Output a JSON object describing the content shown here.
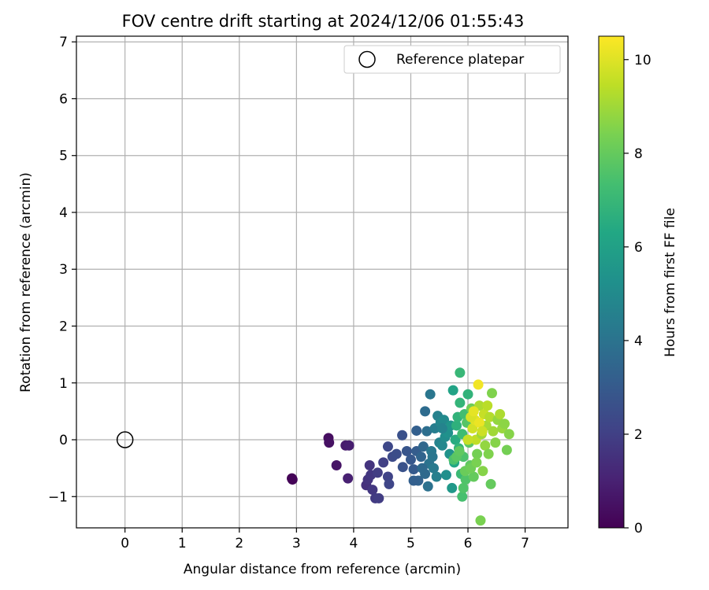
{
  "chart_data": {
    "type": "scatter",
    "title": "FOV centre drift starting at 2024/12/06 01:55:43",
    "xlabel": "Angular distance from reference (arcmin)",
    "ylabel": "Rotation from reference (arcmin)",
    "xlim": [
      -0.85,
      7.75
    ],
    "ylim": [
      -1.55,
      7.1
    ],
    "xticks": [
      0,
      1,
      2,
      3,
      4,
      5,
      6,
      7
    ],
    "yticks": [
      -1,
      0,
      1,
      2,
      3,
      4,
      5,
      6,
      7
    ],
    "grid": true,
    "legend": {
      "position": "top-right",
      "entries": [
        "Reference platepar"
      ]
    },
    "reference_point": {
      "x": 0,
      "y": 0,
      "marker": "open-circle"
    },
    "colorbar": {
      "label": "Hours from first FF file",
      "min": 0,
      "max": 10.5,
      "ticks": [
        0,
        2,
        4,
        6,
        8,
        10
      ],
      "colormap": "viridis"
    },
    "points": [
      {
        "x": 2.92,
        "y": -0.68,
        "c": 0.05
      },
      {
        "x": 2.93,
        "y": -0.7,
        "c": 0.1
      },
      {
        "x": 3.56,
        "y": 0.03,
        "c": 0.4
      },
      {
        "x": 3.57,
        "y": -0.05,
        "c": 0.5
      },
      {
        "x": 3.7,
        "y": -0.45,
        "c": 0.6
      },
      {
        "x": 3.86,
        "y": -0.1,
        "c": 0.8
      },
      {
        "x": 3.92,
        "y": -0.1,
        "c": 0.9
      },
      {
        "x": 3.9,
        "y": -0.68,
        "c": 1.0
      },
      {
        "x": 4.22,
        "y": -0.8,
        "c": 1.5
      },
      {
        "x": 4.25,
        "y": -0.7,
        "c": 1.6
      },
      {
        "x": 4.28,
        "y": -0.45,
        "c": 1.6
      },
      {
        "x": 4.3,
        "y": -0.62,
        "c": 1.7
      },
      {
        "x": 4.33,
        "y": -0.88,
        "c": 1.7
      },
      {
        "x": 4.38,
        "y": -1.03,
        "c": 1.8
      },
      {
        "x": 4.42,
        "y": -0.58,
        "c": 1.9
      },
      {
        "x": 4.44,
        "y": -1.03,
        "c": 1.9
      },
      {
        "x": 4.52,
        "y": -0.4,
        "c": 2.0
      },
      {
        "x": 4.6,
        "y": -0.65,
        "c": 2.1
      },
      {
        "x": 4.62,
        "y": -0.78,
        "c": 2.2
      },
      {
        "x": 4.6,
        "y": -0.12,
        "c": 2.3
      },
      {
        "x": 4.68,
        "y": -0.3,
        "c": 2.4
      },
      {
        "x": 4.75,
        "y": -0.25,
        "c": 2.5
      },
      {
        "x": 4.85,
        "y": 0.08,
        "c": 2.6
      },
      {
        "x": 4.86,
        "y": -0.48,
        "c": 2.7
      },
      {
        "x": 4.93,
        "y": -0.2,
        "c": 2.8
      },
      {
        "x": 5.0,
        "y": -0.35,
        "c": 2.9
      },
      {
        "x": 5.05,
        "y": -0.52,
        "c": 3.0
      },
      {
        "x": 5.1,
        "y": -0.2,
        "c": 3.1
      },
      {
        "x": 5.1,
        "y": 0.16,
        "c": 3.2
      },
      {
        "x": 5.13,
        "y": -0.72,
        "c": 3.3
      },
      {
        "x": 5.18,
        "y": -0.3,
        "c": 3.4
      },
      {
        "x": 5.22,
        "y": -0.12,
        "c": 3.5
      },
      {
        "x": 5.25,
        "y": -0.6,
        "c": 3.6
      },
      {
        "x": 5.25,
        "y": 0.5,
        "c": 3.7
      },
      {
        "x": 5.28,
        "y": 0.15,
        "c": 3.8
      },
      {
        "x": 5.3,
        "y": -0.82,
        "c": 3.9
      },
      {
        "x": 5.32,
        "y": -0.42,
        "c": 4.0
      },
      {
        "x": 5.34,
        "y": 0.8,
        "c": 4.1
      },
      {
        "x": 5.36,
        "y": -0.2,
        "c": 4.2
      },
      {
        "x": 5.4,
        "y": -0.5,
        "c": 4.3
      },
      {
        "x": 5.42,
        "y": 0.2,
        "c": 4.4
      },
      {
        "x": 5.45,
        "y": -0.65,
        "c": 4.5
      },
      {
        "x": 5.47,
        "y": 0.42,
        "c": 4.6
      },
      {
        "x": 5.5,
        "y": -0.05,
        "c": 4.7
      },
      {
        "x": 5.52,
        "y": 0.3,
        "c": 4.8
      },
      {
        "x": 5.55,
        "y": -0.1,
        "c": 4.9
      },
      {
        "x": 5.58,
        "y": 0.35,
        "c": 5.0
      },
      {
        "x": 5.6,
        "y": 0.05,
        "c": 5.1
      },
      {
        "x": 5.62,
        "y": -0.62,
        "c": 5.2
      },
      {
        "x": 5.65,
        "y": 0.12,
        "c": 5.3
      },
      {
        "x": 5.68,
        "y": -0.25,
        "c": 5.4
      },
      {
        "x": 5.7,
        "y": 0.25,
        "c": 5.5
      },
      {
        "x": 5.72,
        "y": -0.85,
        "c": 5.6
      },
      {
        "x": 5.74,
        "y": 0.87,
        "c": 6.1
      },
      {
        "x": 5.76,
        "y": -0.4,
        "c": 6.3
      },
      {
        "x": 5.78,
        "y": 0.0,
        "c": 6.5
      },
      {
        "x": 5.8,
        "y": 0.25,
        "c": 6.7
      },
      {
        "x": 5.82,
        "y": 0.4,
        "c": 6.8
      },
      {
        "x": 5.84,
        "y": -0.15,
        "c": 6.9
      },
      {
        "x": 5.86,
        "y": 1.18,
        "c": 7.0
      },
      {
        "x": 5.86,
        "y": 0.65,
        "c": 6.9
      },
      {
        "x": 5.88,
        "y": -0.6,
        "c": 7.1
      },
      {
        "x": 5.9,
        "y": -1.0,
        "c": 7.4
      },
      {
        "x": 5.9,
        "y": 0.1,
        "c": 7.2
      },
      {
        "x": 5.92,
        "y": -0.3,
        "c": 7.5
      },
      {
        "x": 5.94,
        "y": 0.45,
        "c": 7.3
      },
      {
        "x": 5.96,
        "y": -0.7,
        "c": 7.6
      },
      {
        "x": 5.98,
        "y": 0.3,
        "c": 7.7
      },
      {
        "x": 6.0,
        "y": 0.8,
        "c": 6.8
      },
      {
        "x": 6.02,
        "y": -0.05,
        "c": 7.8
      },
      {
        "x": 6.04,
        "y": -0.45,
        "c": 7.9
      },
      {
        "x": 6.06,
        "y": 0.55,
        "c": 8.2
      },
      {
        "x": 6.08,
        "y": 0.2,
        "c": 9.8
      },
      {
        "x": 6.1,
        "y": -0.65,
        "c": 8.0
      },
      {
        "x": 6.12,
        "y": 0.35,
        "c": 10.0
      },
      {
        "x": 6.14,
        "y": 0.0,
        "c": 9.5
      },
      {
        "x": 6.16,
        "y": -0.25,
        "c": 8.3
      },
      {
        "x": 6.18,
        "y": 0.97,
        "c": 10.3
      },
      {
        "x": 6.2,
        "y": 0.6,
        "c": 9.2
      },
      {
        "x": 6.22,
        "y": -1.42,
        "c": 8.4
      },
      {
        "x": 6.24,
        "y": 0.1,
        "c": 9.0
      },
      {
        "x": 6.26,
        "y": -0.55,
        "c": 8.6
      },
      {
        "x": 6.28,
        "y": 0.45,
        "c": 9.6
      },
      {
        "x": 6.3,
        "y": -0.1,
        "c": 8.8
      },
      {
        "x": 6.32,
        "y": 0.25,
        "c": 9.1
      },
      {
        "x": 6.34,
        "y": 0.6,
        "c": 9.4
      },
      {
        "x": 6.36,
        "y": -0.25,
        "c": 8.5
      },
      {
        "x": 6.38,
        "y": 0.4,
        "c": 9.3
      },
      {
        "x": 6.4,
        "y": -0.78,
        "c": 8.0
      },
      {
        "x": 6.42,
        "y": 0.82,
        "c": 8.5
      },
      {
        "x": 6.44,
        "y": 0.15,
        "c": 9.0
      },
      {
        "x": 6.48,
        "y": -0.05,
        "c": 8.6
      },
      {
        "x": 6.52,
        "y": 0.35,
        "c": 8.8
      },
      {
        "x": 6.56,
        "y": 0.45,
        "c": 9.2
      },
      {
        "x": 6.6,
        "y": 0.2,
        "c": 8.9
      },
      {
        "x": 6.64,
        "y": 0.28,
        "c": 8.7
      },
      {
        "x": 6.68,
        "y": -0.18,
        "c": 8.3
      },
      {
        "x": 6.72,
        "y": 0.1,
        "c": 8.6
      },
      {
        "x": 5.05,
        "y": -0.72,
        "c": 3.2
      },
      {
        "x": 5.2,
        "y": -0.5,
        "c": 3.6
      },
      {
        "x": 5.38,
        "y": -0.3,
        "c": 4.1
      },
      {
        "x": 5.55,
        "y": 0.2,
        "c": 4.7
      },
      {
        "x": 5.75,
        "y": -0.35,
        "c": 7.5
      },
      {
        "x": 5.8,
        "y": -0.3,
        "c": 7.8
      },
      {
        "x": 5.85,
        "y": -0.2,
        "c": 7.9
      },
      {
        "x": 5.95,
        "y": -0.55,
        "c": 8.1
      },
      {
        "x": 6.05,
        "y": -0.5,
        "c": 8.2
      },
      {
        "x": 6.15,
        "y": -0.4,
        "c": 8.4
      },
      {
        "x": 5.92,
        "y": -0.85,
        "c": 7.6
      },
      {
        "x": 6.0,
        "y": 0.0,
        "c": 9.6
      },
      {
        "x": 6.05,
        "y": 0.4,
        "c": 9.9
      },
      {
        "x": 6.1,
        "y": 0.5,
        "c": 10.1
      },
      {
        "x": 6.2,
        "y": 0.3,
        "c": 10.2
      },
      {
        "x": 6.25,
        "y": 0.15,
        "c": 9.7
      }
    ]
  }
}
